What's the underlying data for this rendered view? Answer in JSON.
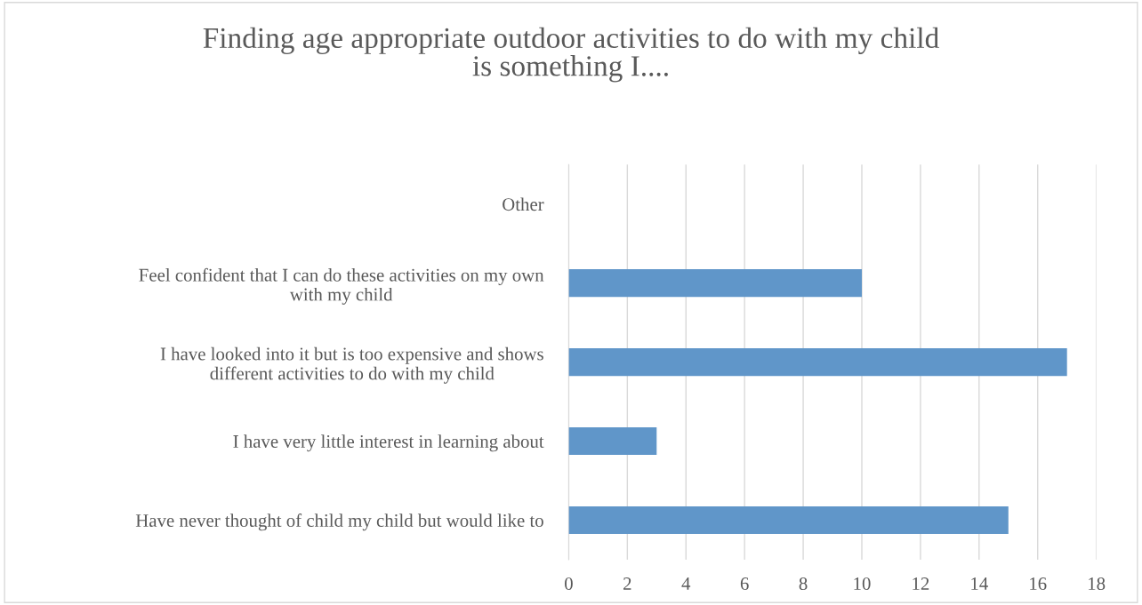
{
  "chart_data": {
    "type": "bar",
    "orientation": "horizontal",
    "title": "Finding age appropriate outdoor activities to do with my child\nis something I....",
    "categories": [
      "Other",
      "Feel confident that I can do these activities on my own\nwith my child",
      "I have looked into it but is too expensive and shows\ndifferent activities to do with my child",
      "I have very little interest in learning about",
      "Have never thought of child my child but would like to"
    ],
    "values": [
      0,
      10,
      17,
      3,
      15
    ],
    "color": "#6096c9",
    "xlim": [
      0,
      18
    ],
    "xticks": [
      0,
      2,
      4,
      6,
      8,
      10,
      12,
      14,
      16,
      18
    ],
    "grid": "x"
  }
}
